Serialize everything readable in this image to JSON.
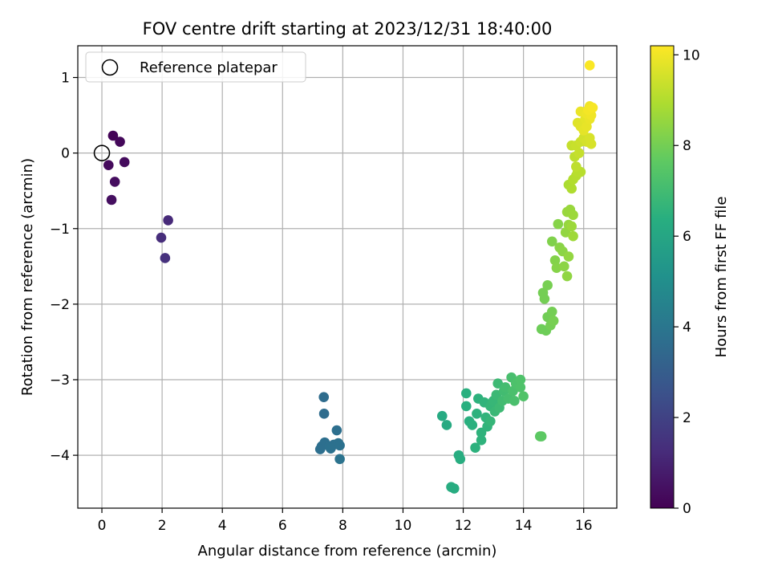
{
  "chart_data": {
    "type": "scatter",
    "title": "FOV centre drift starting at 2023/12/31 18:40:00",
    "xlabel": "Angular distance from reference (arcmin)",
    "ylabel": "Rotation from reference (arcmin)",
    "xlim": [
      -0.8,
      17.1
    ],
    "ylim": [
      -4.7,
      1.42
    ],
    "xticks": [
      0,
      2,
      4,
      6,
      8,
      10,
      12,
      14,
      16
    ],
    "yticks": [
      1,
      0,
      -1,
      -2,
      -3,
      -4
    ],
    "grid": true,
    "legend": {
      "position": "top-left",
      "entries": [
        "Reference platepar"
      ]
    },
    "colorbar": {
      "label": "Hours from first FF file",
      "min": 0,
      "max": 10.2,
      "ticks": [
        0,
        2,
        4,
        6,
        8,
        10
      ],
      "colormap": "viridis"
    },
    "reference_point": {
      "x": 0,
      "y": 0,
      "label": "Reference platepar"
    },
    "points": [
      {
        "x": 0.37,
        "y": 0.23,
        "c": 0.1
      },
      {
        "x": 0.6,
        "y": 0.15,
        "c": 0.2
      },
      {
        "x": 0.75,
        "y": -0.12,
        "c": 0.3
      },
      {
        "x": 0.22,
        "y": -0.16,
        "c": 0.25
      },
      {
        "x": 0.43,
        "y": -0.38,
        "c": 0.35
      },
      {
        "x": 0.32,
        "y": -0.62,
        "c": 0.4
      },
      {
        "x": 2.2,
        "y": -0.89,
        "c": 1.2
      },
      {
        "x": 1.97,
        "y": -1.12,
        "c": 1.3
      },
      {
        "x": 2.1,
        "y": -1.39,
        "c": 1.4
      },
      {
        "x": 7.37,
        "y": -3.23,
        "c": 3.6
      },
      {
        "x": 7.38,
        "y": -3.45,
        "c": 3.6
      },
      {
        "x": 7.8,
        "y": -3.67,
        "c": 3.7
      },
      {
        "x": 7.3,
        "y": -3.88,
        "c": 3.7
      },
      {
        "x": 7.4,
        "y": -3.83,
        "c": 3.7
      },
      {
        "x": 7.55,
        "y": -3.88,
        "c": 3.75
      },
      {
        "x": 7.7,
        "y": -3.86,
        "c": 3.75
      },
      {
        "x": 7.85,
        "y": -3.84,
        "c": 3.8
      },
      {
        "x": 7.9,
        "y": -3.87,
        "c": 3.8
      },
      {
        "x": 7.25,
        "y": -3.92,
        "c": 3.7
      },
      {
        "x": 7.6,
        "y": -3.91,
        "c": 3.8
      },
      {
        "x": 7.9,
        "y": -4.05,
        "c": 3.85
      },
      {
        "x": 11.3,
        "y": -3.48,
        "c": 6.2
      },
      {
        "x": 11.45,
        "y": -3.6,
        "c": 6.2
      },
      {
        "x": 11.6,
        "y": -4.42,
        "c": 6.3
      },
      {
        "x": 11.7,
        "y": -4.44,
        "c": 6.3
      },
      {
        "x": 11.85,
        "y": -4.0,
        "c": 6.3
      },
      {
        "x": 11.9,
        "y": -4.05,
        "c": 6.35
      },
      {
        "x": 12.1,
        "y": -3.18,
        "c": 6.4
      },
      {
        "x": 12.1,
        "y": -3.35,
        "c": 6.4
      },
      {
        "x": 12.2,
        "y": -3.55,
        "c": 6.4
      },
      {
        "x": 12.3,
        "y": -3.6,
        "c": 6.45
      },
      {
        "x": 12.4,
        "y": -3.9,
        "c": 6.5
      },
      {
        "x": 12.5,
        "y": -3.25,
        "c": 6.5
      },
      {
        "x": 12.45,
        "y": -3.45,
        "c": 6.5
      },
      {
        "x": 12.6,
        "y": -3.7,
        "c": 6.55
      },
      {
        "x": 12.6,
        "y": -3.8,
        "c": 6.55
      },
      {
        "x": 12.7,
        "y": -3.3,
        "c": 6.6
      },
      {
        "x": 12.75,
        "y": -3.5,
        "c": 6.6
      },
      {
        "x": 12.8,
        "y": -3.62,
        "c": 6.6
      },
      {
        "x": 12.9,
        "y": -3.35,
        "c": 6.7
      },
      {
        "x": 12.9,
        "y": -3.55,
        "c": 6.7
      },
      {
        "x": 13.0,
        "y": -3.28,
        "c": 6.75
      },
      {
        "x": 13.05,
        "y": -3.42,
        "c": 6.8
      },
      {
        "x": 13.1,
        "y": -3.2,
        "c": 6.85
      },
      {
        "x": 13.15,
        "y": -3.05,
        "c": 6.9
      },
      {
        "x": 13.2,
        "y": -3.37,
        "c": 6.9
      },
      {
        "x": 13.3,
        "y": -3.28,
        "c": 7.0
      },
      {
        "x": 13.35,
        "y": -3.15,
        "c": 7.0
      },
      {
        "x": 13.4,
        "y": -3.1,
        "c": 7.05
      },
      {
        "x": 13.5,
        "y": -3.25,
        "c": 7.1
      },
      {
        "x": 13.6,
        "y": -2.97,
        "c": 7.15
      },
      {
        "x": 13.65,
        "y": -3.15,
        "c": 7.2
      },
      {
        "x": 13.7,
        "y": -3.28,
        "c": 7.2
      },
      {
        "x": 13.75,
        "y": -3.05,
        "c": 7.25
      },
      {
        "x": 13.9,
        "y": -3.0,
        "c": 7.3
      },
      {
        "x": 13.9,
        "y": -3.1,
        "c": 7.3
      },
      {
        "x": 14.0,
        "y": -3.22,
        "c": 7.35
      },
      {
        "x": 14.55,
        "y": -3.75,
        "c": 7.6
      },
      {
        "x": 14.6,
        "y": -3.75,
        "c": 7.6
      },
      {
        "x": 14.6,
        "y": -2.33,
        "c": 7.9
      },
      {
        "x": 14.75,
        "y": -2.35,
        "c": 7.9
      },
      {
        "x": 14.8,
        "y": -2.17,
        "c": 7.95
      },
      {
        "x": 14.9,
        "y": -2.28,
        "c": 8.0
      },
      {
        "x": 14.95,
        "y": -2.1,
        "c": 8.0
      },
      {
        "x": 15.0,
        "y": -2.22,
        "c": 8.05
      },
      {
        "x": 14.65,
        "y": -1.85,
        "c": 8.0
      },
      {
        "x": 14.7,
        "y": -1.93,
        "c": 8.0
      },
      {
        "x": 14.8,
        "y": -1.75,
        "c": 8.05
      },
      {
        "x": 14.95,
        "y": -1.17,
        "c": 8.2
      },
      {
        "x": 15.05,
        "y": -1.42,
        "c": 8.25
      },
      {
        "x": 15.1,
        "y": -1.52,
        "c": 8.3
      },
      {
        "x": 15.15,
        "y": -0.94,
        "c": 8.3
      },
      {
        "x": 15.2,
        "y": -1.25,
        "c": 8.35
      },
      {
        "x": 15.3,
        "y": -1.3,
        "c": 8.4
      },
      {
        "x": 15.35,
        "y": -1.5,
        "c": 8.4
      },
      {
        "x": 15.45,
        "y": -1.63,
        "c": 8.45
      },
      {
        "x": 15.5,
        "y": -1.37,
        "c": 8.5
      },
      {
        "x": 15.4,
        "y": -1.05,
        "c": 8.5
      },
      {
        "x": 15.5,
        "y": -0.95,
        "c": 8.55
      },
      {
        "x": 15.45,
        "y": -0.78,
        "c": 8.6
      },
      {
        "x": 15.55,
        "y": -0.75,
        "c": 8.6
      },
      {
        "x": 15.65,
        "y": -0.82,
        "c": 8.65
      },
      {
        "x": 15.6,
        "y": -0.97,
        "c": 8.65
      },
      {
        "x": 15.65,
        "y": -1.1,
        "c": 8.7
      },
      {
        "x": 15.5,
        "y": -0.42,
        "c": 8.9
      },
      {
        "x": 15.6,
        "y": -0.47,
        "c": 8.95
      },
      {
        "x": 15.65,
        "y": -0.35,
        "c": 9.0
      },
      {
        "x": 15.75,
        "y": -0.3,
        "c": 9.05
      },
      {
        "x": 15.8,
        "y": -0.25,
        "c": 9.1
      },
      {
        "x": 15.9,
        "y": -0.25,
        "c": 9.1
      },
      {
        "x": 15.7,
        "y": -0.05,
        "c": 9.2
      },
      {
        "x": 15.75,
        "y": -0.18,
        "c": 9.2
      },
      {
        "x": 15.85,
        "y": 0.0,
        "c": 9.3
      },
      {
        "x": 15.6,
        "y": 0.1,
        "c": 9.3
      },
      {
        "x": 15.75,
        "y": 0.1,
        "c": 9.35
      },
      {
        "x": 15.9,
        "y": 0.15,
        "c": 9.4
      },
      {
        "x": 16.0,
        "y": 0.2,
        "c": 9.5
      },
      {
        "x": 16.1,
        "y": 0.15,
        "c": 9.55
      },
      {
        "x": 16.2,
        "y": 0.2,
        "c": 9.6
      },
      {
        "x": 16.25,
        "y": 0.12,
        "c": 9.6
      },
      {
        "x": 15.8,
        "y": 0.4,
        "c": 9.7
      },
      {
        "x": 15.9,
        "y": 0.35,
        "c": 9.75
      },
      {
        "x": 16.0,
        "y": 0.3,
        "c": 9.8
      },
      {
        "x": 16.05,
        "y": 0.45,
        "c": 9.8
      },
      {
        "x": 16.1,
        "y": 0.35,
        "c": 9.85
      },
      {
        "x": 16.2,
        "y": 0.45,
        "c": 9.9
      },
      {
        "x": 15.9,
        "y": 0.55,
        "c": 9.9
      },
      {
        "x": 16.1,
        "y": 0.52,
        "c": 9.95
      },
      {
        "x": 16.25,
        "y": 0.5,
        "c": 10.0
      },
      {
        "x": 16.2,
        "y": 0.62,
        "c": 10.0
      },
      {
        "x": 16.15,
        "y": 0.57,
        "c": 10.05
      },
      {
        "x": 16.3,
        "y": 0.6,
        "c": 10.1
      },
      {
        "x": 16.2,
        "y": 1.16,
        "c": 10.15
      }
    ]
  }
}
